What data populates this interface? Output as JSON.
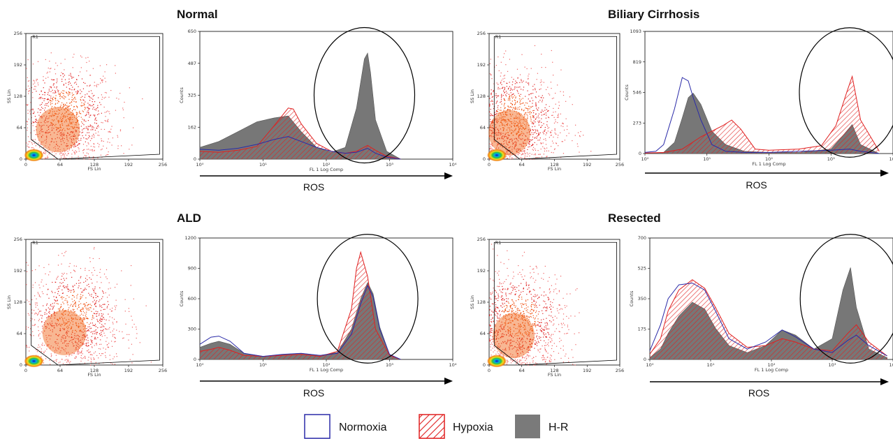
{
  "panels": [
    {
      "title": "Normal"
    },
    {
      "title": "Biliary Cirrhosis"
    },
    {
      "title": "ALD"
    },
    {
      "title": "Resected"
    }
  ],
  "legend": [
    {
      "label": "Normoxia",
      "color": "#2a2aa8",
      "style": "outline"
    },
    {
      "label": "Hypoxia",
      "color": "#e02020",
      "style": "hatched"
    },
    {
      "label": "H-R",
      "color": "#7a7a7a",
      "style": "filled"
    }
  ],
  "chart_data": [
    {
      "type": "scatter",
      "panel": "Normal",
      "subtype": "density-dot-plot",
      "xlabel": "FS Lin",
      "ylabel": "SS Lin",
      "xticks": [
        "0",
        "64",
        "128",
        "192",
        "256"
      ],
      "yticks": [
        "0",
        "64",
        "128",
        "192",
        "256"
      ],
      "xlim": [
        0,
        256
      ],
      "ylim": [
        0,
        256
      ],
      "gate_label": "R1",
      "density_center": [
        75,
        100
      ]
    },
    {
      "type": "area",
      "panel": "Normal",
      "subtype": "histogram-overlay",
      "xlabel": "FL 1 Log Comp",
      "ylabel": "Counts",
      "xscale": "log",
      "xlim": [
        1,
        10000
      ],
      "ylim": [
        0,
        650
      ],
      "xticks": [
        "10⁰",
        "10¹",
        "10²",
        "10³",
        "10⁴"
      ],
      "yticks": [
        "0",
        "162",
        "325",
        "487",
        "650"
      ],
      "axis_caption": "ROS",
      "highlight_ellipse_center_x": 400,
      "series": [
        {
          "name": "Normoxia",
          "x": [
            1,
            2,
            4,
            8,
            15,
            25,
            40,
            70,
            120,
            200,
            300,
            450,
            600,
            900,
            1500
          ],
          "values": [
            50,
            45,
            55,
            75,
            100,
            115,
            90,
            60,
            40,
            30,
            35,
            55,
            30,
            10,
            0
          ]
        },
        {
          "name": "Hypoxia",
          "x": [
            1,
            2,
            4,
            8,
            15,
            25,
            30,
            40,
            70,
            120,
            200,
            300,
            450,
            600,
            900,
            1500
          ],
          "values": [
            40,
            35,
            45,
            65,
            170,
            260,
            255,
            180,
            80,
            40,
            30,
            40,
            70,
            45,
            15,
            0
          ]
        },
        {
          "name": "H-R",
          "x": [
            1,
            2,
            4,
            8,
            15,
            25,
            40,
            70,
            120,
            200,
            300,
            400,
            450,
            500,
            600,
            900,
            1500
          ],
          "values": [
            60,
            90,
            140,
            190,
            210,
            220,
            140,
            60,
            35,
            60,
            260,
            510,
            540,
            440,
            200,
            40,
            0
          ]
        }
      ]
    },
    {
      "type": "scatter",
      "panel": "Biliary Cirrhosis",
      "subtype": "density-dot-plot",
      "xlabel": "FS Lin",
      "ylabel": "SS Lin",
      "xticks": [
        "0",
        "64",
        "128",
        "192",
        "256"
      ],
      "yticks": [
        "0",
        "64",
        "128",
        "192",
        "256"
      ],
      "xlim": [
        0,
        256
      ],
      "ylim": [
        0,
        256
      ],
      "gate_label": "R1",
      "density_center": [
        50,
        90
      ]
    },
    {
      "type": "area",
      "panel": "Biliary Cirrhosis",
      "subtype": "histogram-overlay",
      "xlabel": "FL 1 Log Comp",
      "ylabel": "Counts",
      "xscale": "log",
      "xlim": [
        1,
        10000
      ],
      "ylim": [
        0,
        1093
      ],
      "xticks": [
        "10⁰",
        "10¹",
        "10²",
        "10³",
        "10⁴"
      ],
      "yticks": [
        "0",
        "273",
        "546",
        "819",
        "1093"
      ],
      "axis_caption": "ROS",
      "highlight_ellipse_center_x": 2000,
      "series": [
        {
          "name": "Normoxia",
          "x": [
            1,
            1.5,
            2,
            3,
            4,
            5,
            6,
            8,
            12,
            20,
            40,
            100,
            300,
            1000,
            2000,
            3000,
            6000
          ],
          "values": [
            10,
            20,
            80,
            400,
            680,
            650,
            500,
            300,
            80,
            20,
            10,
            10,
            20,
            30,
            40,
            20,
            0
          ]
        },
        {
          "name": "Hypoxia",
          "x": [
            1,
            2,
            4,
            8,
            12,
            18,
            25,
            35,
            60,
            100,
            300,
            700,
            1200,
            1800,
            2200,
            3000,
            6000
          ],
          "values": [
            5,
            10,
            40,
            150,
            200,
            250,
            300,
            220,
            40,
            30,
            40,
            70,
            250,
            550,
            690,
            300,
            20
          ]
        },
        {
          "name": "H-R",
          "x": [
            1,
            2,
            3,
            4,
            5,
            6,
            8,
            12,
            20,
            40,
            100,
            300,
            1000,
            1500,
            2200,
            3000,
            6000
          ],
          "values": [
            0,
            10,
            100,
            320,
            500,
            540,
            440,
            200,
            80,
            20,
            10,
            10,
            40,
            150,
            260,
            80,
            0
          ]
        }
      ]
    },
    {
      "type": "scatter",
      "panel": "ALD",
      "subtype": "density-dot-plot",
      "xlabel": "FS Lin",
      "ylabel": "SS Lin",
      "xticks": [
        "0",
        "64",
        "128",
        "192",
        "256"
      ],
      "yticks": [
        "0",
        "64",
        "128",
        "192",
        "256"
      ],
      "xlim": [
        0,
        256
      ],
      "ylim": [
        0,
        256
      ],
      "gate_label": "R1",
      "density_center": [
        90,
        110
      ]
    },
    {
      "type": "area",
      "panel": "ALD",
      "subtype": "histogram-overlay",
      "xlabel": "FL 1 Log Comp",
      "ylabel": "Counts",
      "xscale": "log",
      "xlim": [
        1,
        10000
      ],
      "ylim": [
        0,
        1200
      ],
      "xticks": [
        "10⁰",
        "10¹",
        "10²",
        "10³",
        "10⁴"
      ],
      "yticks": [
        "0",
        "300",
        "600",
        "900",
        "1200"
      ],
      "axis_caption": "ROS",
      "highlight_ellipse_center_x": 450,
      "series": [
        {
          "name": "Normoxia",
          "x": [
            1,
            1.5,
            2,
            3,
            5,
            10,
            20,
            40,
            80,
            150,
            250,
            350,
            450,
            550,
            700,
            1000,
            1500
          ],
          "values": [
            150,
            220,
            230,
            180,
            60,
            30,
            50,
            60,
            40,
            60,
            250,
            550,
            730,
            620,
            300,
            50,
            0
          ]
        },
        {
          "name": "Hypoxia",
          "x": [
            1,
            1.5,
            2,
            3,
            5,
            10,
            20,
            40,
            80,
            150,
            250,
            300,
            350,
            450,
            600,
            1000,
            1500
          ],
          "values": [
            80,
            100,
            120,
            90,
            40,
            30,
            40,
            50,
            30,
            80,
            500,
            900,
            1060,
            820,
            300,
            40,
            0
          ]
        },
        {
          "name": "H-R",
          "x": [
            1,
            1.5,
            2,
            3,
            5,
            10,
            20,
            40,
            80,
            150,
            250,
            350,
            450,
            550,
            700,
            1000,
            1500
          ],
          "values": [
            120,
            160,
            180,
            150,
            60,
            30,
            50,
            60,
            40,
            70,
            300,
            600,
            760,
            650,
            320,
            50,
            0
          ]
        }
      ]
    },
    {
      "type": "scatter",
      "panel": "Resected",
      "subtype": "density-dot-plot",
      "xlabel": "FS Lin",
      "ylabel": "SS Lin",
      "xticks": [
        "0",
        "64",
        "128",
        "192",
        "256"
      ],
      "yticks": [
        "0",
        "64",
        "128",
        "192",
        "256"
      ],
      "xlim": [
        0,
        256
      ],
      "ylim": [
        0,
        256
      ],
      "gate_label": "R1",
      "density_center": [
        60,
        100
      ]
    },
    {
      "type": "area",
      "panel": "Resected",
      "subtype": "histogram-overlay",
      "xlabel": "FL 1 Log Comp",
      "ylabel": "Counts",
      "xscale": "log",
      "xlim": [
        1,
        10000
      ],
      "ylim": [
        0,
        700
      ],
      "xticks": [
        "10⁰",
        "10¹",
        "10²",
        "10³",
        "10⁴"
      ],
      "yticks": [
        "0",
        "175",
        "350",
        "525",
        "700"
      ],
      "axis_caption": "ROS",
      "highlight_ellipse_center_x": 2000,
      "series": [
        {
          "name": "Normoxia",
          "x": [
            1,
            1.5,
            2,
            3,
            5,
            8,
            12,
            20,
            40,
            80,
            150,
            250,
            500,
            1000,
            1800,
            2500,
            4000,
            8000
          ],
          "values": [
            50,
            200,
            350,
            430,
            440,
            400,
            280,
            120,
            60,
            100,
            170,
            130,
            60,
            40,
            110,
            140,
            80,
            20
          ]
        },
        {
          "name": "Hypoxia",
          "x": [
            1,
            1.5,
            2,
            3,
            5,
            8,
            12,
            20,
            40,
            80,
            150,
            250,
            500,
            1000,
            1800,
            2500,
            4000,
            8000
          ],
          "values": [
            30,
            120,
            280,
            400,
            460,
            410,
            300,
            150,
            70,
            80,
            120,
            100,
            60,
            50,
            150,
            200,
            100,
            20
          ]
        },
        {
          "name": "H-R",
          "x": [
            1,
            1.5,
            2,
            3,
            5,
            8,
            12,
            20,
            40,
            80,
            150,
            250,
            500,
            1000,
            1500,
            2000,
            2500,
            4000,
            8000
          ],
          "values": [
            10,
            60,
            150,
            250,
            330,
            290,
            180,
            80,
            40,
            80,
            170,
            140,
            60,
            120,
            400,
            530,
            300,
            60,
            10
          ]
        }
      ]
    }
  ]
}
